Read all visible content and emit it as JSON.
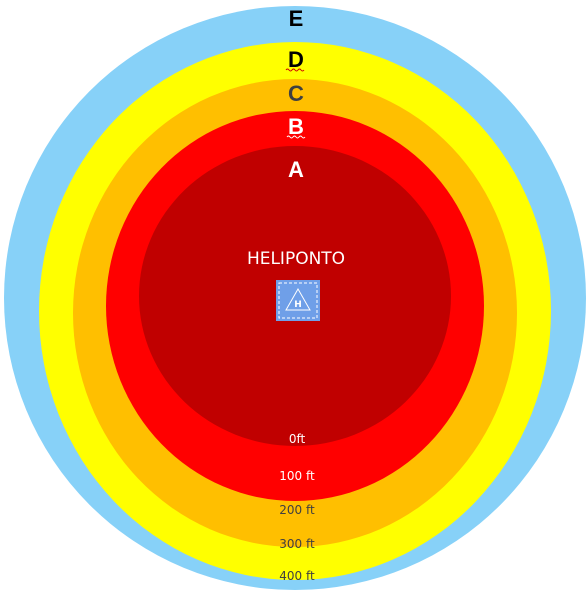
{
  "diagram": {
    "center_label": "HELIPONTO",
    "helipad_icon": "helipad-icon",
    "zones": [
      {
        "letter": "E",
        "distance": "400 ft",
        "color": "#87d1f8"
      },
      {
        "letter": "D",
        "distance": "300 ft",
        "color": "#ffff00"
      },
      {
        "letter": "C",
        "distance": "200 ft",
        "color": "#ffbf00"
      },
      {
        "letter": "B",
        "distance": "100 ft",
        "color": "#ff0000"
      },
      {
        "letter": "A",
        "distance": "0ft",
        "color": "#c00000"
      }
    ],
    "icon_color": "#6f9fe8"
  }
}
